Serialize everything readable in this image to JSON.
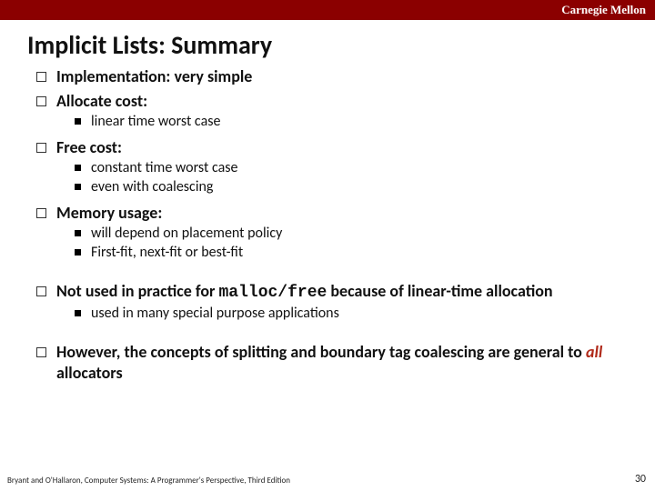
{
  "header": {
    "brand": "Carnegie Mellon"
  },
  "title": "Implicit Lists: Summary",
  "bullets": {
    "b1": "Implementation: very simple",
    "b2": "Allocate cost:",
    "b2_1": "linear time worst case",
    "b3": "Free cost:",
    "b3_1": "constant time worst case",
    "b3_2": "even with coalescing",
    "b4": "Memory usage:",
    "b4_1": "will depend on placement policy",
    "b4_2": "First-fit, next-fit or best-fit",
    "b5_pre": "Not used in practice for ",
    "b5_code": "malloc/free",
    "b5_post": " because of linear-time allocation",
    "b5_1": "used in many special purpose applications",
    "b6_pre": "However, the concepts of splitting and boundary tag coalescing are general to ",
    "b6_emph": "all",
    "b6_post": " allocators"
  },
  "footer": "Bryant and O'Hallaron, Computer Systems: A Programmer's Perspective, Third Edition",
  "page": "30",
  "colors": {
    "header_bg": "#8b0000",
    "header_text": "#ffffff",
    "emph": "#b02a1a"
  }
}
